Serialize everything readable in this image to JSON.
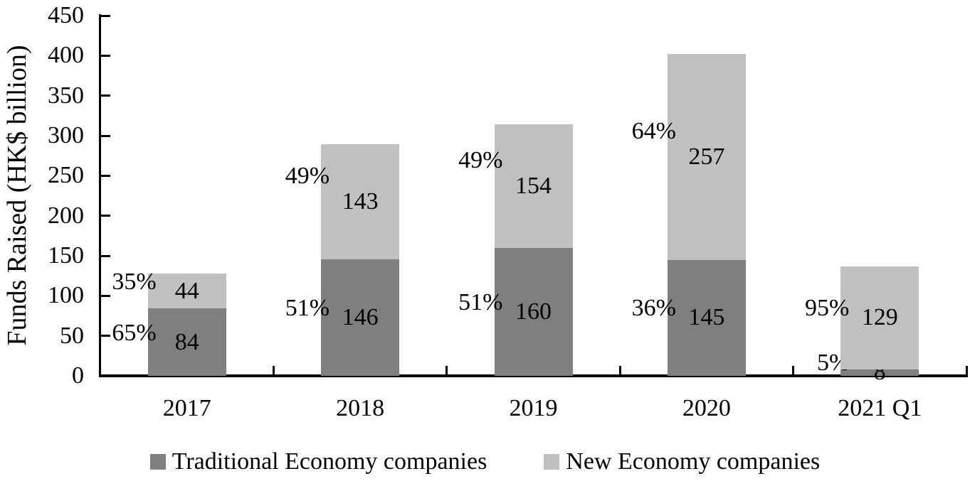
{
  "chart_data": {
    "type": "bar",
    "stacked": true,
    "categories": [
      "2017",
      "2018",
      "2019",
      "2020",
      "2021 Q1"
    ],
    "series": [
      {
        "name": "Traditional Economy companies",
        "color": "#7f7f7f",
        "values": [
          84,
          146,
          160,
          145,
          8
        ],
        "pct_labels": [
          "65%",
          "51%",
          "51%",
          "36%",
          "5%"
        ]
      },
      {
        "name": "New Economy companies",
        "color": "#c0c0c0",
        "values": [
          44,
          143,
          154,
          257,
          129
        ],
        "pct_labels": [
          "35%",
          "49%",
          "49%",
          "64%",
          "95%"
        ]
      }
    ],
    "totals": [
      128,
      289,
      314,
      402,
      137
    ],
    "title": "",
    "xlabel": "",
    "ylabel": "Funds Raised (HK$ billion)",
    "ylim": [
      0,
      450
    ],
    "yticks": [
      0,
      50,
      100,
      150,
      200,
      250,
      300,
      350,
      400,
      450
    ],
    "grid": false,
    "legend_position": "bottom",
    "axis_color": "#000000",
    "text_color": "#000000"
  }
}
